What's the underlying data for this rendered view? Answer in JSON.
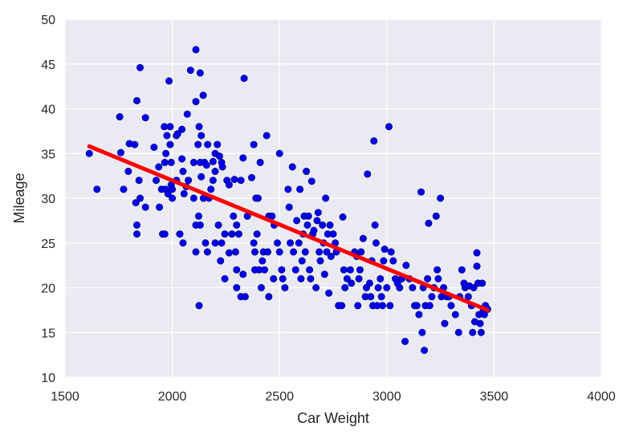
{
  "chart_data": {
    "type": "scatter",
    "xlabel": "Car Weight",
    "ylabel": "Mileage",
    "xlim": [
      1500,
      4000
    ],
    "ylim": [
      10,
      50
    ],
    "xticks": [
      1500,
      2000,
      2500,
      3000,
      3500,
      4000
    ],
    "yticks": [
      10,
      15,
      20,
      25,
      30,
      35,
      40,
      45,
      50
    ],
    "grid": true,
    "colors": {
      "background": "#eaeaf2",
      "grid": "#ffffff",
      "points": "#0000ee",
      "fit": "#ff0000",
      "text": "#262626"
    },
    "series": [
      {
        "type": "scatter",
        "points": [
          [
            1613,
            35
          ],
          [
            1649,
            31
          ],
          [
            1755,
            39.1
          ],
          [
            1760,
            35.1
          ],
          [
            1773,
            31
          ],
          [
            1795,
            33
          ],
          [
            1800,
            36.1
          ],
          [
            1825,
            36
          ],
          [
            1830,
            29.5
          ],
          [
            1835,
            26
          ],
          [
            1835,
            27
          ],
          [
            1835,
            40.9
          ],
          [
            1845,
            32
          ],
          [
            1850,
            44.6
          ],
          [
            1850,
            30
          ],
          [
            1875,
            39
          ],
          [
            1875,
            29
          ],
          [
            1915,
            35.7
          ],
          [
            1925,
            32
          ],
          [
            1937,
            33.5
          ],
          [
            1940,
            29
          ],
          [
            1950,
            31
          ],
          [
            1955,
            26
          ],
          [
            1963,
            38
          ],
          [
            1965,
            26
          ],
          [
            1965,
            34
          ],
          [
            1968,
            31
          ],
          [
            1970,
            35
          ],
          [
            1975,
            37
          ],
          [
            1980,
            30.5
          ],
          [
            1985,
            43.1
          ],
          [
            1990,
            38
          ],
          [
            1990,
            36
          ],
          [
            1995,
            31.5
          ],
          [
            1995,
            34
          ],
          [
            2000,
            30
          ],
          [
            2000,
            31
          ],
          [
            2019,
            37
          ],
          [
            2020,
            32
          ],
          [
            2025,
            37.2
          ],
          [
            2035,
            26
          ],
          [
            2045,
            37.7
          ],
          [
            2045,
            34.4
          ],
          [
            2050,
            25
          ],
          [
            2050,
            33
          ],
          [
            2055,
            30.5
          ],
          [
            2065,
            31.3
          ],
          [
            2070,
            39.4
          ],
          [
            2075,
            32
          ],
          [
            2085,
            44.3
          ],
          [
            2100,
            34
          ],
          [
            2100,
            30
          ],
          [
            2110,
            40.8
          ],
          [
            2110,
            24
          ],
          [
            2110,
            27
          ],
          [
            2110,
            46.6
          ],
          [
            2120,
            36
          ],
          [
            2123,
            28
          ],
          [
            2125,
            18
          ],
          [
            2125,
            38
          ],
          [
            2130,
            44
          ],
          [
            2130,
            34
          ],
          [
            2130,
            27
          ],
          [
            2135,
            37
          ],
          [
            2135,
            32.4
          ],
          [
            2144,
            41.5
          ],
          [
            2145,
            30
          ],
          [
            2150,
            34
          ],
          [
            2155,
            25
          ],
          [
            2160,
            33.7
          ],
          [
            2164,
            24
          ],
          [
            2165,
            36
          ],
          [
            2171,
            30
          ],
          [
            2180,
            31
          ],
          [
            2190,
            34.1
          ],
          [
            2190,
            32
          ],
          [
            2200,
            25
          ],
          [
            2200,
            35
          ],
          [
            2200,
            33
          ],
          [
            2210,
            36
          ],
          [
            2215,
            27
          ],
          [
            2220,
            34.7
          ],
          [
            2225,
            23
          ],
          [
            2230,
            25
          ],
          [
            2230,
            34
          ],
          [
            2234,
            33.5
          ],
          [
            2245,
            26
          ],
          [
            2245,
            21
          ],
          [
            2255,
            32
          ],
          [
            2265,
            31.5
          ],
          [
            2265,
            23.9
          ],
          [
            2278,
            26
          ],
          [
            2285,
            28
          ],
          [
            2290,
            32.1
          ],
          [
            2295,
            24
          ],
          [
            2300,
            20
          ],
          [
            2300,
            27
          ],
          [
            2300,
            22
          ],
          [
            2310,
            26
          ],
          [
            2320,
            32
          ],
          [
            2320,
            19
          ],
          [
            2330,
            34.5
          ],
          [
            2330,
            21.5
          ],
          [
            2335,
            43.4
          ],
          [
            2340,
            19
          ],
          [
            2350,
            28
          ],
          [
            2370,
            32.3
          ],
          [
            2380,
            25
          ],
          [
            2380,
            36
          ],
          [
            2385,
            24
          ],
          [
            2385,
            22
          ],
          [
            2390,
            30
          ],
          [
            2395,
            26
          ],
          [
            2400,
            30
          ],
          [
            2405,
            22
          ],
          [
            2410,
            34
          ],
          [
            2415,
            20
          ],
          [
            2420,
            23
          ],
          [
            2425,
            24
          ],
          [
            2430,
            22
          ],
          [
            2440,
            37
          ],
          [
            2445,
            24
          ],
          [
            2450,
            19
          ],
          [
            2450,
            28
          ],
          [
            2465,
            28
          ],
          [
            2472,
            21
          ],
          [
            2475,
            27
          ],
          [
            2490,
            25
          ],
          [
            2500,
            35
          ],
          [
            2500,
            24
          ],
          [
            2510,
            22
          ],
          [
            2515,
            21
          ],
          [
            2525,
            20
          ],
          [
            2540,
            31
          ],
          [
            2545,
            29
          ],
          [
            2550,
            25
          ],
          [
            2560,
            33.5
          ],
          [
            2565,
            24
          ],
          [
            2575,
            22
          ],
          [
            2580,
            27.5
          ],
          [
            2590,
            25
          ],
          [
            2595,
            31
          ],
          [
            2600,
            21
          ],
          [
            2605,
            23
          ],
          [
            2610,
            26
          ],
          [
            2615,
            28
          ],
          [
            2620,
            24
          ],
          [
            2625,
            33
          ],
          [
            2630,
            27
          ],
          [
            2635,
            28
          ],
          [
            2640,
            22
          ],
          [
            2645,
            21
          ],
          [
            2650,
            31.9
          ],
          [
            2655,
            26
          ],
          [
            2660,
            26.4
          ],
          [
            2670,
            20
          ],
          [
            2675,
            27.5
          ],
          [
            2680,
            28.4
          ],
          [
            2685,
            24
          ],
          [
            2690,
            23
          ],
          [
            2700,
            27
          ],
          [
            2705,
            25
          ],
          [
            2710,
            21.5
          ],
          [
            2715,
            30
          ],
          [
            2720,
            24
          ],
          [
            2725,
            26
          ],
          [
            2730,
            19.4
          ],
          [
            2735,
            27
          ],
          [
            2740,
            23.5
          ],
          [
            2750,
            26
          ],
          [
            2760,
            25
          ],
          [
            2765,
            24
          ],
          [
            2775,
            18
          ],
          [
            2790,
            18
          ],
          [
            2795,
            27.9
          ],
          [
            2800,
            22
          ],
          [
            2805,
            20
          ],
          [
            2815,
            21
          ],
          [
            2830,
            22
          ],
          [
            2835,
            20.5
          ],
          [
            2850,
            24
          ],
          [
            2860,
            23.5
          ],
          [
            2865,
            18
          ],
          [
            2870,
            21
          ],
          [
            2875,
            22
          ],
          [
            2880,
            24
          ],
          [
            2890,
            25.5
          ],
          [
            2900,
            19
          ],
          [
            2905,
            20
          ],
          [
            2910,
            32.7
          ],
          [
            2920,
            20.5
          ],
          [
            2925,
            19
          ],
          [
            2930,
            23
          ],
          [
            2935,
            18
          ],
          [
            2940,
            36.4
          ],
          [
            2945,
            27
          ],
          [
            2950,
            25
          ],
          [
            2955,
            18
          ],
          [
            2960,
            20
          ],
          [
            2970,
            21
          ],
          [
            2975,
            19
          ],
          [
            2980,
            18
          ],
          [
            2985,
            23
          ],
          [
            2990,
            24.3
          ],
          [
            3000,
            20
          ],
          [
            3010,
            38
          ],
          [
            3015,
            18
          ],
          [
            3020,
            24
          ],
          [
            3030,
            23
          ],
          [
            3040,
            21
          ],
          [
            3050,
            20.5
          ],
          [
            3060,
            20
          ],
          [
            3070,
            21
          ],
          [
            3085,
            14
          ],
          [
            3090,
            22.5
          ],
          [
            3105,
            21
          ],
          [
            3120,
            20
          ],
          [
            3130,
            18
          ],
          [
            3140,
            18
          ],
          [
            3150,
            17
          ],
          [
            3160,
            30.7
          ],
          [
            3165,
            15
          ],
          [
            3170,
            20
          ],
          [
            3175,
            13
          ],
          [
            3180,
            18
          ],
          [
            3190,
            21
          ],
          [
            3195,
            27.2
          ],
          [
            3200,
            18
          ],
          [
            3210,
            19
          ],
          [
            3220,
            20
          ],
          [
            3230,
            28
          ],
          [
            3235,
            22
          ],
          [
            3240,
            21
          ],
          [
            3250,
            30
          ],
          [
            3255,
            19
          ],
          [
            3265,
            20
          ],
          [
            3270,
            16
          ],
          [
            3280,
            19
          ],
          [
            3290,
            19
          ],
          [
            3300,
            18
          ],
          [
            3320,
            17
          ],
          [
            3335,
            15
          ],
          [
            3340,
            19
          ],
          [
            3350,
            22
          ],
          [
            3360,
            20.5
          ],
          [
            3365,
            20
          ],
          [
            3370,
            20.2
          ],
          [
            3380,
            19
          ],
          [
            3385,
            20.2
          ],
          [
            3395,
            18
          ],
          [
            3400,
            15
          ],
          [
            3405,
            20
          ],
          [
            3410,
            16.2
          ],
          [
            3420,
            23.9
          ],
          [
            3420,
            22.4
          ],
          [
            3425,
            20.5
          ],
          [
            3430,
            17
          ],
          [
            3435,
            16
          ],
          [
            3440,
            15
          ],
          [
            3445,
            20.5
          ],
          [
            3450,
            17.5
          ],
          [
            3455,
            17
          ],
          [
            3460,
            18
          ],
          [
            3470,
            17.6
          ]
        ]
      },
      {
        "type": "line",
        "x": [
          1613,
          3470
        ],
        "y": [
          35.8,
          17.5
        ]
      }
    ]
  }
}
